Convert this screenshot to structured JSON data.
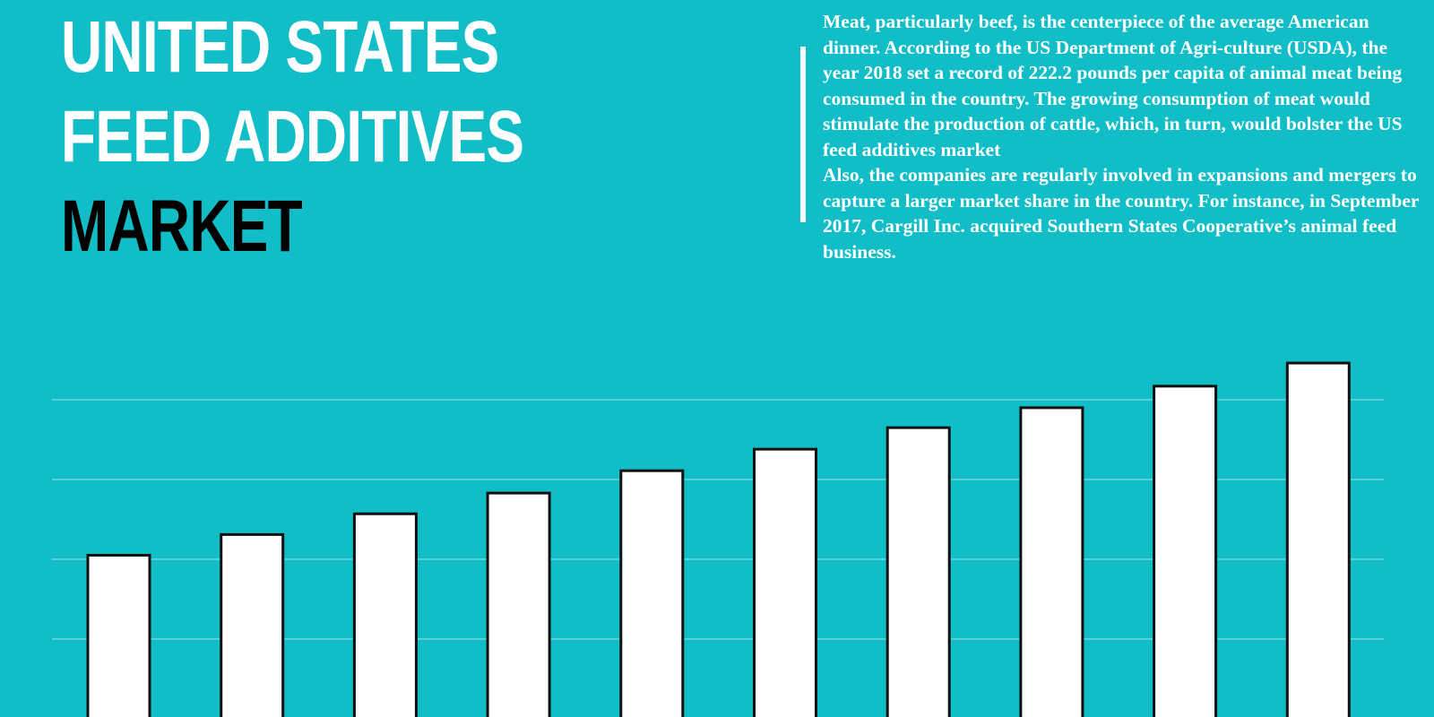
{
  "title": {
    "line1": "UNITED STATES",
    "line2": "FEED ADDITIVES",
    "line3": "MARKET"
  },
  "description": {
    "paragraph1": "Meat, particularly beef, is the centerpiece of the average American dinner. According to the US Department of Agri-culture (USDA), the year 2018 set a record of 222.2 pounds per capita of animal meat being consumed in the country. The growing consumption of meat would stimulate the production of cattle, which, in turn, would bolster the US feed additives market",
    "paragraph2": "Also, the companies are regularly involved in expansions and mergers to capture a larger market share in the country. For instance, in September 2017, Cargill Inc. acquired Southern States Cooperative’s animal feed business."
  },
  "colors": {
    "background": "#11bdc6",
    "bar_fill": "#ffffff",
    "bar_stroke": "#111111",
    "gridline": "#7fdde2"
  },
  "chart_data": {
    "type": "bar",
    "values": [
      205,
      231,
      257,
      283,
      311,
      338,
      365,
      390,
      417,
      446
    ],
    "ylim": [
      0,
      500
    ],
    "grid": true,
    "gridlines": [
      100,
      200,
      300,
      400
    ]
  }
}
